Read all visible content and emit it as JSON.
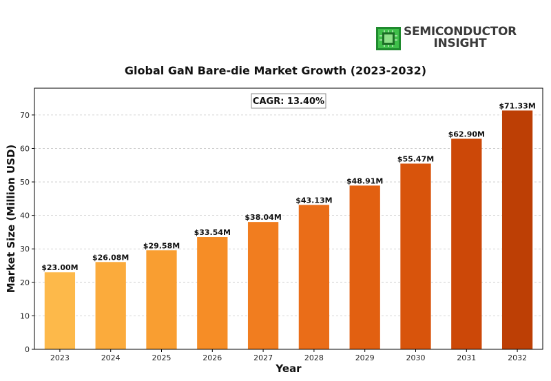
{
  "brand": {
    "line1": "SEMICONDUCTOR",
    "line2": "INSIGHT",
    "accent": "#2e9e3a"
  },
  "chart_data": {
    "type": "bar",
    "title": "Global GaN Bare-die Market Growth (2023-2032)",
    "xlabel": "Year",
    "ylabel": "Market Size (Million USD)",
    "annotation": "CAGR: 13.40%",
    "categories": [
      "2023",
      "2024",
      "2025",
      "2026",
      "2027",
      "2028",
      "2029",
      "2030",
      "2031",
      "2032"
    ],
    "values": [
      23.0,
      26.08,
      29.58,
      33.54,
      38.04,
      43.13,
      48.91,
      55.47,
      62.9,
      71.33
    ],
    "data_labels": [
      "$23.00M",
      "$26.08M",
      "$29.58M",
      "$33.54M",
      "$38.04M",
      "$43.13M",
      "$48.91M",
      "$55.47M",
      "$62.90M",
      "$71.33M"
    ],
    "ylim": [
      0,
      78
    ],
    "yticks": [
      0,
      10,
      20,
      30,
      40,
      50,
      60,
      70
    ],
    "grid": true,
    "colors": [
      "#FDB94A",
      "#FBAB3C",
      "#F99E31",
      "#F68D26",
      "#F17D1F",
      "#EA6D18",
      "#E26011",
      "#D8540C",
      "#CC4808",
      "#BD3F05"
    ]
  }
}
